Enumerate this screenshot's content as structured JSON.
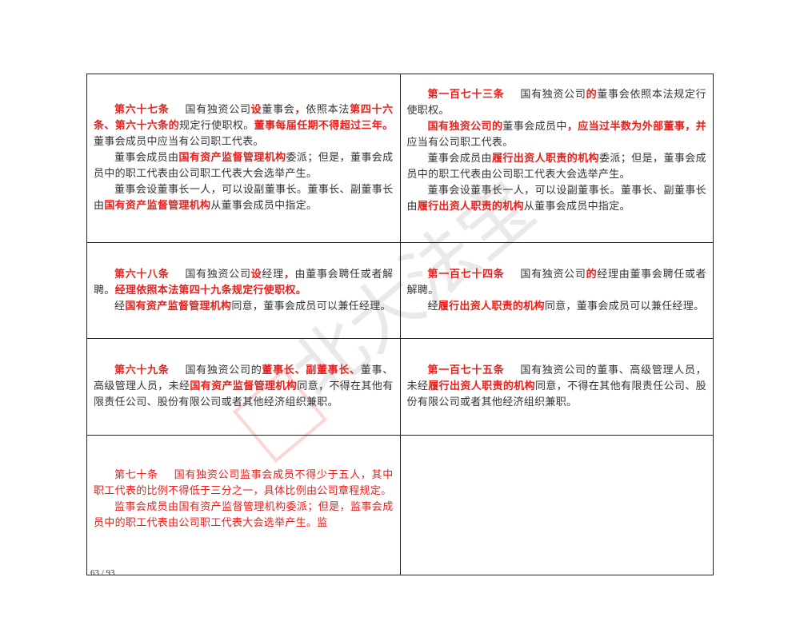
{
  "rows": [
    {
      "left": [
        [
          [
            "rb",
            "第六十七条"
          ],
          [
            "gap",
            ""
          ],
          [
            "n",
            "国有独资公司"
          ],
          [
            "rb",
            "设"
          ],
          [
            "n",
            "董事会"
          ],
          [
            "rb",
            "，"
          ],
          [
            "n",
            "依照本法"
          ],
          [
            "rb",
            "第四十六条、第六十六条的"
          ],
          [
            "n",
            "规定行使职权。"
          ],
          [
            "rb",
            "董事每届任期不得超过三年。"
          ],
          [
            "n",
            "董事会成员中应当有公司职工代表。"
          ]
        ],
        [
          [
            "n",
            "董事会成员由"
          ],
          [
            "rb",
            "国有资产监督管理机构"
          ],
          [
            "n",
            "委派；但是，董事会成员中的职工代表由公司职工代表大会选举产生。"
          ]
        ],
        [
          [
            "n",
            "董事会设董事长一人，可以设副董事长。董事长、副董事长由"
          ],
          [
            "rb",
            "国有资产监督管理机构"
          ],
          [
            "n",
            "从董事会成员中指定。"
          ]
        ]
      ],
      "right": [
        [
          [
            "rb",
            "第一百七十三条"
          ],
          [
            "gap",
            ""
          ],
          [
            "n",
            "国有独资公司"
          ],
          [
            "rb",
            "的"
          ],
          [
            "n",
            "董事会依照本法规定行使职权。"
          ]
        ],
        [
          [
            "rb",
            "国有独资公司的"
          ],
          [
            "n",
            "董事会成员中"
          ],
          [
            "rb",
            "，应当过半数为外部董事，并"
          ],
          [
            "n",
            "应当有公司职工代表。"
          ]
        ],
        [
          [
            "n",
            "董事会成员由"
          ],
          [
            "rb",
            "履行出资人职责的机构"
          ],
          [
            "n",
            "委派；但是，董事会成员中的职工代表由公司职工代表大会选举产生。"
          ]
        ],
        [
          [
            "n",
            "董事会设董事长一人，可以设副董事长。董事长、副董事长由"
          ],
          [
            "rb",
            "履行出资人职责的机构"
          ],
          [
            "n",
            "从董事会成员中指定。"
          ]
        ]
      ]
    },
    {
      "left": [
        [
          [
            "rb",
            "第六十八条"
          ],
          [
            "gap",
            ""
          ],
          [
            "n",
            "国有独资公司"
          ],
          [
            "rb",
            "设"
          ],
          [
            "n",
            "经理"
          ],
          [
            "rb",
            "，"
          ],
          [
            "n",
            "由董事会聘任或者解聘。"
          ],
          [
            "rb",
            "经理依照本法第四十九条规定行使职权。"
          ]
        ],
        [
          [
            "n",
            "经"
          ],
          [
            "rb",
            "国有资产监督管理机构"
          ],
          [
            "n",
            "同意，董事会成员可以兼任经理。"
          ]
        ]
      ],
      "right": [
        [
          [
            "rb",
            "第一百七十四条"
          ],
          [
            "gap",
            ""
          ],
          [
            "n",
            "国有独资公司"
          ],
          [
            "rb",
            "的"
          ],
          [
            "n",
            "经理由董事会聘任或者解聘。"
          ]
        ],
        [
          [
            "n",
            "经"
          ],
          [
            "rb",
            "履行出资人职责的机构"
          ],
          [
            "n",
            "同意，董事会成员可以兼任经理。"
          ]
        ]
      ]
    },
    {
      "left": [
        [
          [
            "rb",
            "第六十九条"
          ],
          [
            "gap",
            ""
          ],
          [
            "n",
            "国有独资公司的"
          ],
          [
            "rb",
            "董事长、副董事长、"
          ],
          [
            "n",
            "董事、高级管理人员，未经"
          ],
          [
            "rb",
            "国有资产监督管理机构"
          ],
          [
            "n",
            "同意，不得在其他有限责任公司、股份有限公司或者其他经济组织兼职。"
          ]
        ]
      ],
      "right": [
        [
          [
            "rb",
            "第一百七十五条"
          ],
          [
            "gap",
            ""
          ],
          [
            "n",
            "国有独资公司的董事、高级管理人员，未经"
          ],
          [
            "rb",
            "履行出资人职责的机构"
          ],
          [
            "n",
            "同意，不得在其他有限责任公司、股份有限公司或者其他经济组织兼职。"
          ]
        ]
      ]
    },
    {
      "left": [
        [
          [
            "red",
            "第七十条"
          ],
          [
            "gap",
            ""
          ],
          [
            "red",
            "国有独资公司监事会成员不得少于五人，其中职工代表的比例不得低于三分之一，具体比例由公司章程规定。"
          ]
        ],
        [
          [
            "red",
            "监事会成员由国有资产监督管理机构委派；但是，监事会成员中的职工代表由公司职工代表大会选举产生。监"
          ]
        ]
      ],
      "right": []
    }
  ],
  "footer": {
    "page": "63 / 93"
  },
  "watermark": {
    "text": "北大法宝 PKULAW.COM 法宝"
  },
  "colors": {
    "highlight": "#e8201c",
    "text": "#333333",
    "border": "#222222"
  }
}
